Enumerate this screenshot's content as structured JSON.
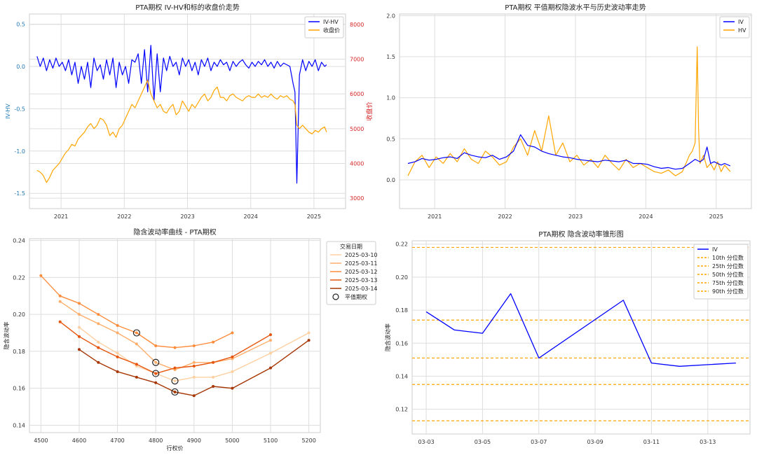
{
  "chart_data": [
    {
      "type": "line",
      "title": "PTA期权 IV-HV和标的收盘价走势",
      "ylabel": "IV-HV",
      "y2label": "收盘价",
      "ylim": [
        -1.68,
        0.62
      ],
      "y2lim": [
        2700,
        8300
      ],
      "xlim": [
        2020.5,
        2025.5
      ],
      "xticks": [
        "2021",
        "2022",
        "2023",
        "2024",
        "2025"
      ],
      "yticks": [
        "-1.5",
        "-1.0",
        "-0.5",
        "0.0",
        "0.5"
      ],
      "y2ticks": [
        "3000",
        "4000",
        "5000",
        "6000",
        "7000",
        "8000"
      ],
      "grid": true,
      "legend_position": "top-right",
      "colors": {
        "left_axis": "#1f77b4",
        "right_axis": "#d62728"
      },
      "series": [
        {
          "name": "IV-HV",
          "axis": "left",
          "color": "#0000ff",
          "x": [
            2020.62,
            2020.67,
            2020.72,
            2020.77,
            2020.82,
            2020.87,
            2020.92,
            2020.97,
            2021.02,
            2021.07,
            2021.12,
            2021.17,
            2021.22,
            2021.27,
            2021.32,
            2021.37,
            2021.42,
            2021.47,
            2021.52,
            2021.57,
            2021.62,
            2021.67,
            2021.72,
            2021.77,
            2021.82,
            2021.87,
            2021.92,
            2021.97,
            2022.02,
            2022.07,
            2022.12,
            2022.17,
            2022.22,
            2022.27,
            2022.32,
            2022.37,
            2022.42,
            2022.47,
            2022.52,
            2022.57,
            2022.62,
            2022.67,
            2022.72,
            2022.77,
            2022.82,
            2022.87,
            2022.92,
            2022.97,
            2023.02,
            2023.07,
            2023.12,
            2023.17,
            2023.22,
            2023.27,
            2023.32,
            2023.37,
            2023.42,
            2023.47,
            2023.52,
            2023.57,
            2023.62,
            2023.67,
            2023.72,
            2023.77,
            2023.82,
            2023.87,
            2023.92,
            2023.97,
            2024.02,
            2024.07,
            2024.12,
            2024.17,
            2024.22,
            2024.27,
            2024.32,
            2024.37,
            2024.42,
            2024.47,
            2024.52,
            2024.57,
            2024.62,
            2024.67,
            2024.7,
            2024.73,
            2024.77,
            2024.82,
            2024.87,
            2024.92,
            2024.97,
            2025.02,
            2025.07,
            2025.12,
            2025.17,
            2025.2
          ],
          "y": [
            0.12,
            0.0,
            0.1,
            -0.05,
            0.08,
            -0.02,
            0.1,
            0.0,
            0.05,
            -0.05,
            0.08,
            -0.1,
            0.05,
            -0.2,
            0.0,
            -0.15,
            0.05,
            -0.25,
            0.1,
            -0.05,
            0.02,
            -0.15,
            0.08,
            -0.1,
            0.1,
            -0.25,
            0.05,
            -0.1,
            0.0,
            -0.2,
            0.08,
            0.05,
            0.15,
            -0.2,
            0.2,
            -0.3,
            0.25,
            -0.4,
            0.15,
            -0.3,
            0.1,
            -0.05,
            0.12,
            0.0,
            0.05,
            -0.1,
            0.1,
            0.0,
            0.08,
            -0.05,
            0.05,
            -0.1,
            0.08,
            0.0,
            0.1,
            -0.05,
            0.05,
            0.0,
            0.08,
            0.02,
            0.05,
            -0.05,
            0.06,
            0.0,
            0.05,
            0.08,
            0.02,
            -0.02,
            0.05,
            0.0,
            0.06,
            0.02,
            0.08,
            0.0,
            0.05,
            -0.02,
            0.06,
            0.0,
            0.04,
            0.02,
            0.0,
            -0.2,
            -0.3,
            -1.38,
            -0.1,
            0.08,
            -0.05,
            0.06,
            0.0,
            0.08,
            -0.05,
            0.05,
            0.0,
            0.02
          ]
        },
        {
          "name": "收盘价",
          "axis": "right",
          "color": "#ffa500",
          "x": [
            2020.62,
            2020.67,
            2020.72,
            2020.77,
            2020.82,
            2020.87,
            2020.92,
            2020.97,
            2021.02,
            2021.07,
            2021.12,
            2021.17,
            2021.22,
            2021.27,
            2021.32,
            2021.37,
            2021.42,
            2021.47,
            2021.52,
            2021.57,
            2021.62,
            2021.67,
            2021.72,
            2021.77,
            2021.82,
            2021.87,
            2021.92,
            2021.97,
            2022.02,
            2022.07,
            2022.12,
            2022.17,
            2022.22,
            2022.27,
            2022.32,
            2022.37,
            2022.42,
            2022.47,
            2022.52,
            2022.57,
            2022.62,
            2022.67,
            2022.72,
            2022.77,
            2022.82,
            2022.87,
            2022.92,
            2022.97,
            2023.02,
            2023.07,
            2023.12,
            2023.17,
            2023.22,
            2023.27,
            2023.32,
            2023.37,
            2023.42,
            2023.47,
            2023.52,
            2023.57,
            2023.62,
            2023.67,
            2023.72,
            2023.77,
            2023.82,
            2023.87,
            2023.92,
            2023.97,
            2024.02,
            2024.07,
            2024.12,
            2024.17,
            2024.22,
            2024.27,
            2024.32,
            2024.37,
            2024.42,
            2024.47,
            2024.52,
            2024.57,
            2024.62,
            2024.67,
            2024.7,
            2024.73,
            2024.77,
            2024.82,
            2024.87,
            2024.92,
            2024.97,
            2025.02,
            2025.07,
            2025.12,
            2025.17,
            2025.2
          ],
          "y": [
            3800,
            3750,
            3650,
            3450,
            3600,
            3800,
            3900,
            4000,
            4150,
            4300,
            4400,
            4550,
            4500,
            4700,
            4800,
            4900,
            5050,
            5150,
            5000,
            5100,
            5300,
            5250,
            5100,
            4800,
            4900,
            4750,
            5000,
            5100,
            5300,
            5500,
            5700,
            5600,
            5800,
            6000,
            6200,
            6400,
            6000,
            5800,
            5600,
            5700,
            5500,
            5450,
            5600,
            5700,
            5400,
            5500,
            5800,
            5650,
            5500,
            5700,
            5600,
            5750,
            5900,
            6000,
            5800,
            5900,
            6100,
            6200,
            5900,
            5900,
            5800,
            5950,
            6000,
            5900,
            5850,
            5800,
            5900,
            5950,
            5900,
            5900,
            6000,
            5900,
            5950,
            5900,
            6000,
            5900,
            5850,
            5950,
            5900,
            5950,
            5850,
            5800,
            5700,
            5100,
            5000,
            5100,
            5000,
            4900,
            4850,
            4950,
            4900,
            5000,
            5050,
            4900
          ]
        }
      ]
    },
    {
      "type": "line",
      "title": "PTA期权 平值期权隐波水平与历史波动率走势",
      "ylim": [
        -0.35,
        2.02
      ],
      "xlim": [
        2020.5,
        2025.5
      ],
      "xticks": [
        "2021",
        "2022",
        "2023",
        "2024",
        "2025"
      ],
      "yticks": [
        "0.0",
        "0.5",
        "1.0",
        "1.5",
        "2.0"
      ],
      "grid": true,
      "legend_position": "top-right",
      "series": [
        {
          "name": "IV",
          "color": "#0000ff",
          "x": [
            2020.62,
            2020.72,
            2020.82,
            2020.92,
            2021.02,
            2021.12,
            2021.22,
            2021.32,
            2021.42,
            2021.52,
            2021.62,
            2021.72,
            2021.82,
            2021.92,
            2022.02,
            2022.12,
            2022.22,
            2022.32,
            2022.42,
            2022.52,
            2022.62,
            2022.72,
            2022.82,
            2022.92,
            2023.02,
            2023.12,
            2023.22,
            2023.32,
            2023.42,
            2023.52,
            2023.62,
            2023.72,
            2023.82,
            2023.92,
            2024.02,
            2024.12,
            2024.22,
            2024.32,
            2024.42,
            2024.52,
            2024.62,
            2024.7,
            2024.77,
            2024.82,
            2024.87,
            2024.92,
            2024.97,
            2025.02,
            2025.07,
            2025.12,
            2025.2
          ],
          "y": [
            0.2,
            0.22,
            0.26,
            0.24,
            0.25,
            0.27,
            0.28,
            0.26,
            0.33,
            0.3,
            0.28,
            0.27,
            0.3,
            0.25,
            0.28,
            0.35,
            0.55,
            0.42,
            0.4,
            0.35,
            0.32,
            0.3,
            0.28,
            0.27,
            0.25,
            0.24,
            0.23,
            0.22,
            0.24,
            0.23,
            0.22,
            0.24,
            0.2,
            0.2,
            0.19,
            0.16,
            0.14,
            0.15,
            0.13,
            0.14,
            0.2,
            0.25,
            0.22,
            0.25,
            0.4,
            0.2,
            0.22,
            0.2,
            0.18,
            0.2,
            0.17
          ]
        },
        {
          "name": "HV",
          "color": "#ffa500",
          "x": [
            2020.62,
            2020.72,
            2020.82,
            2020.92,
            2021.02,
            2021.12,
            2021.22,
            2021.32,
            2021.42,
            2021.52,
            2021.62,
            2021.72,
            2021.82,
            2021.92,
            2022.02,
            2022.12,
            2022.22,
            2022.32,
            2022.42,
            2022.52,
            2022.62,
            2022.72,
            2022.82,
            2022.92,
            2023.02,
            2023.12,
            2023.22,
            2023.32,
            2023.42,
            2023.52,
            2023.62,
            2023.72,
            2023.82,
            2023.92,
            2024.02,
            2024.12,
            2024.22,
            2024.32,
            2024.42,
            2024.52,
            2024.62,
            2024.66,
            2024.7,
            2024.73,
            2024.75,
            2024.77,
            2024.82,
            2024.87,
            2024.92,
            2024.97,
            2025.02,
            2025.07,
            2025.12,
            2025.2
          ],
          "y": [
            0.05,
            0.22,
            0.3,
            0.15,
            0.28,
            0.2,
            0.32,
            0.22,
            0.38,
            0.25,
            0.2,
            0.35,
            0.28,
            0.18,
            0.22,
            0.4,
            0.5,
            0.3,
            0.6,
            0.35,
            0.78,
            0.3,
            0.45,
            0.22,
            0.3,
            0.18,
            0.25,
            0.15,
            0.3,
            0.2,
            0.12,
            0.25,
            0.15,
            0.2,
            0.15,
            0.1,
            0.08,
            0.12,
            0.05,
            0.1,
            0.3,
            0.35,
            0.45,
            1.62,
            0.6,
            0.2,
            0.3,
            0.15,
            0.2,
            0.12,
            0.22,
            0.1,
            0.18,
            0.1
          ]
        }
      ]
    },
    {
      "type": "line",
      "title": "隐含波动率曲线 - PTA期权",
      "xlabel": "行权价",
      "ylabel": "隐含波动率",
      "xlim": [
        4470,
        5230
      ],
      "ylim": [
        0.136,
        0.241
      ],
      "xticks": [
        4500,
        4600,
        4700,
        4800,
        4900,
        5000,
        5100,
        5200
      ],
      "yticks": [
        "0.14",
        "0.16",
        "0.18",
        "0.20",
        "0.22",
        "0.24"
      ],
      "grid": true,
      "legend_position": "outside-right",
      "legend_title": "交易日期",
      "series": [
        {
          "name": "2025-03-10",
          "color": "#fdd0a2",
          "x": [
            4600,
            4650,
            4700,
            4750,
            4800,
            4850,
            4900,
            4950,
            5000,
            5100,
            5200
          ],
          "y": [
            0.193,
            0.185,
            0.179,
            0.172,
            0.168,
            0.164,
            0.166,
            0.166,
            0.169,
            0.179,
            0.19
          ]
        },
        {
          "name": "2025-03-11",
          "color": "#fdae6b",
          "x": [
            4550,
            4600,
            4650,
            4700,
            4750,
            4800,
            4850,
            4900,
            4950,
            5000,
            5100
          ],
          "y": [
            0.207,
            0.2,
            0.195,
            0.19,
            0.184,
            0.174,
            0.17,
            0.174,
            0.174,
            0.176,
            0.186
          ]
        },
        {
          "name": "2025-03-12",
          "color": "#fd8d3c",
          "x": [
            4500,
            4550,
            4600,
            4650,
            4700,
            4750,
            4800,
            4850,
            4900,
            4950,
            5000
          ],
          "y": [
            0.221,
            0.21,
            0.206,
            0.2,
            0.194,
            0.19,
            0.183,
            0.182,
            0.183,
            0.185,
            0.19
          ]
        },
        {
          "name": "2025-03-13",
          "color": "#e6550d",
          "x": [
            4550,
            4600,
            4650,
            4700,
            4750,
            4800,
            4850,
            4900,
            4950,
            5000,
            5100
          ],
          "y": [
            0.196,
            0.188,
            0.182,
            0.177,
            0.173,
            0.168,
            0.171,
            0.172,
            0.174,
            0.177,
            0.189
          ]
        },
        {
          "name": "2025-03-14",
          "color": "#a63603",
          "x": [
            4600,
            4650,
            4700,
            4750,
            4800,
            4850,
            4900,
            4950,
            5000,
            5100,
            5200
          ],
          "y": [
            0.181,
            0.174,
            0.169,
            0.166,
            0.163,
            0.158,
            0.156,
            0.161,
            0.16,
            0.171,
            0.186
          ]
        }
      ],
      "atm_points": [
        {
          "x": 4750,
          "y": 0.19
        },
        {
          "x": 4800,
          "y": 0.174
        },
        {
          "x": 4800,
          "y": 0.168
        },
        {
          "x": 4850,
          "y": 0.164
        },
        {
          "x": 4850,
          "y": 0.158
        }
      ],
      "atm_label": "平值期权"
    },
    {
      "type": "line",
      "title": "PTA期权 隐含波动率锥形图",
      "ylabel": "隐含波动率",
      "xlim": [
        -0.5,
        11.5
      ],
      "ylim": [
        0.105,
        0.222
      ],
      "xticks": [
        {
          "x": 0,
          "label": "03-03"
        },
        {
          "x": 2,
          "label": "03-05"
        },
        {
          "x": 4,
          "label": "03-07"
        },
        {
          "x": 6,
          "label": "03-09"
        },
        {
          "x": 8,
          "label": "03-11"
        },
        {
          "x": 10,
          "label": "03-13"
        }
      ],
      "yticks": [
        "0.12",
        "0.14",
        "0.16",
        "0.18",
        "0.20",
        "0.22"
      ],
      "grid": true,
      "legend_position": "top-right",
      "series": [
        {
          "name": "IV",
          "color": "#0000ff",
          "x": [
            0,
            1,
            2,
            3,
            4,
            7,
            8,
            9,
            11
          ],
          "y": [
            0.179,
            0.168,
            0.166,
            0.19,
            0.151,
            0.186,
            0.148,
            0.146,
            0.148
          ]
        }
      ],
      "percentile_color": "#ffa500",
      "percentiles": [
        {
          "name": "10th 分位数",
          "value": 0.113
        },
        {
          "name": "25th 分位数",
          "value": 0.135
        },
        {
          "name": "50th 分位数",
          "value": 0.151
        },
        {
          "name": "75th 分位数",
          "value": 0.174
        },
        {
          "name": "90th 分位数",
          "value": 0.218
        }
      ]
    }
  ]
}
